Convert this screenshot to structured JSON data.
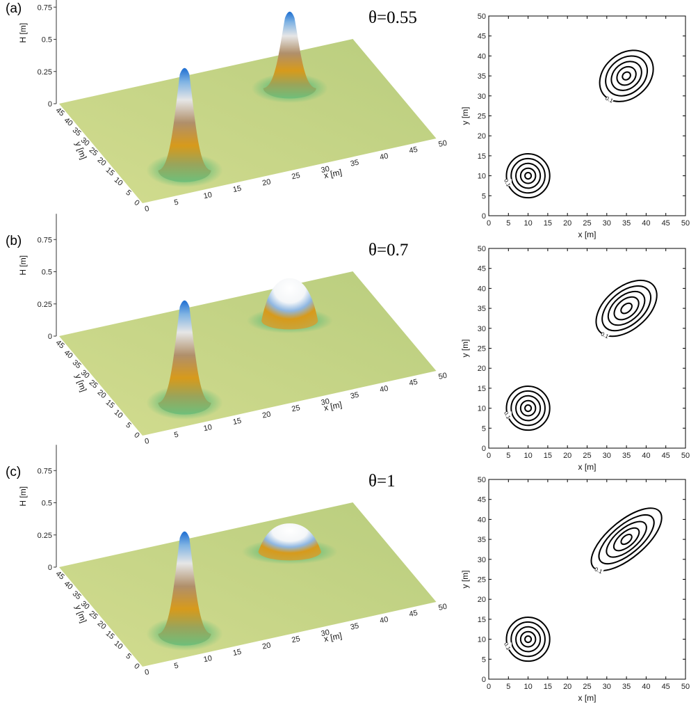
{
  "panels": [
    {
      "label": "(a)",
      "theta_label": "θ=0.55"
    },
    {
      "label": "(b)",
      "theta_label": "θ=0.7"
    },
    {
      "label": "(c)",
      "theta_label": "θ=1"
    }
  ],
  "colors": {
    "plane": "#c3d383",
    "peak_blue": "#1d6ed2",
    "band_orange": "#d79a1b",
    "band_green": "#6fbf7a",
    "contour": "#000000"
  },
  "chart_data": [
    {
      "type": "surface3d",
      "panel": "(a)",
      "zlabel": "H [m]",
      "xlabel": "x [m]",
      "ylabel": "y [m]",
      "z_ticks": [
        "0",
        "0.25",
        "0.5",
        "0.75"
      ],
      "x_ticks": [
        "0",
        "5",
        "10",
        "15",
        "20",
        "25",
        "30",
        "35",
        "40",
        "45",
        "50"
      ],
      "y_ticks": [
        "0",
        "5",
        "10",
        "15",
        "20",
        "25",
        "30",
        "35",
        "40",
        "45"
      ],
      "xlim": [
        0,
        50
      ],
      "ylim": [
        0,
        50
      ],
      "zlim": [
        0,
        1
      ],
      "humps": [
        {
          "cx": 10,
          "cy": 10,
          "height": 0.8,
          "rx": 4,
          "ry": 4
        },
        {
          "cx": 35,
          "cy": 35,
          "height": 0.6,
          "rx": 4,
          "ry": 3.5
        }
      ]
    },
    {
      "type": "contour",
      "panel": "(a)",
      "xlabel": "x [m]",
      "ylabel": "y [m]",
      "xlim": [
        0,
        50
      ],
      "ylim": [
        0,
        50
      ],
      "x_ticks": [
        0,
        5,
        10,
        15,
        20,
        25,
        30,
        35,
        40,
        45,
        50
      ],
      "y_ticks": [
        0,
        5,
        10,
        15,
        20,
        25,
        30,
        35,
        40,
        45,
        50
      ],
      "contour_label": "0.1",
      "ellipses": [
        {
          "cx": 10,
          "cy": 10,
          "radii": [
            [
              5.5,
              5.5
            ],
            [
              4.3,
              4.3
            ],
            [
              3.1,
              3.1
            ],
            [
              1.9,
              1.9
            ],
            [
              0.8,
              0.8
            ]
          ],
          "angle": 0
        },
        {
          "cx": 35,
          "cy": 35,
          "radii": [
            [
              7.5,
              5.6
            ],
            [
              5.8,
              4.4
            ],
            [
              4.2,
              3.2
            ],
            [
              2.6,
              2.1
            ],
            [
              1.1,
              0.9
            ]
          ],
          "angle": 40
        }
      ]
    },
    {
      "type": "surface3d",
      "panel": "(b)",
      "zlabel": "H [m]",
      "xlabel": "x [m]",
      "ylabel": "y [m]",
      "z_ticks": [
        "0",
        "0.25",
        "0.5",
        "0.75"
      ],
      "x_ticks": [
        "0",
        "5",
        "10",
        "15",
        "20",
        "25",
        "30",
        "35",
        "40",
        "45",
        "50"
      ],
      "y_ticks": [
        "0",
        "5",
        "10",
        "15",
        "20",
        "25",
        "30",
        "35",
        "40",
        "45"
      ],
      "xlim": [
        0,
        50
      ],
      "ylim": [
        0,
        50
      ],
      "zlim": [
        0,
        1
      ],
      "humps": [
        {
          "cx": 10,
          "cy": 10,
          "height": 0.8,
          "rx": 4,
          "ry": 4
        },
        {
          "cx": 35,
          "cy": 35,
          "height": 0.33,
          "rx": 4.5,
          "ry": 3
        }
      ]
    },
    {
      "type": "contour",
      "panel": "(b)",
      "xlabel": "x [m]",
      "ylabel": "y [m]",
      "xlim": [
        0,
        50
      ],
      "ylim": [
        0,
        50
      ],
      "x_ticks": [
        0,
        5,
        10,
        15,
        20,
        25,
        30,
        35,
        40,
        45,
        50
      ],
      "y_ticks": [
        0,
        5,
        10,
        15,
        20,
        25,
        30,
        35,
        40,
        45,
        50
      ],
      "contour_label": "0.1",
      "ellipses": [
        {
          "cx": 10,
          "cy": 10,
          "radii": [
            [
              5.5,
              5.5
            ],
            [
              4.3,
              4.3
            ],
            [
              3.1,
              3.1
            ],
            [
              1.9,
              1.9
            ],
            [
              0.8,
              0.8
            ]
          ],
          "angle": 0
        },
        {
          "cx": 35,
          "cy": 35,
          "radii": [
            [
              9.0,
              5.3
            ],
            [
              7.2,
              4.2
            ],
            [
              5.4,
              3.2
            ],
            [
              3.6,
              2.2
            ],
            [
              1.6,
              1.0
            ]
          ],
          "angle": 40
        }
      ]
    },
    {
      "type": "surface3d",
      "panel": "(c)",
      "zlabel": "H [m]",
      "xlabel": "x [m]",
      "ylabel": "y [m]",
      "z_ticks": [
        "0",
        "0.25",
        "0.5",
        "0.75"
      ],
      "x_ticks": [
        "0",
        "5",
        "10",
        "15",
        "20",
        "25",
        "30",
        "35",
        "40",
        "45",
        "50"
      ],
      "y_ticks": [
        "0",
        "5",
        "10",
        "15",
        "20",
        "25",
        "30",
        "35",
        "40",
        "45"
      ],
      "xlim": [
        0,
        50
      ],
      "ylim": [
        0,
        50
      ],
      "zlim": [
        0,
        1
      ],
      "humps": [
        {
          "cx": 10,
          "cy": 10,
          "height": 0.8,
          "rx": 4,
          "ry": 4
        },
        {
          "cx": 35,
          "cy": 35,
          "height": 0.22,
          "rx": 5,
          "ry": 3
        }
      ]
    },
    {
      "type": "contour",
      "panel": "(c)",
      "xlabel": "x [m]",
      "ylabel": "y [m]",
      "xlim": [
        0,
        50
      ],
      "ylim": [
        0,
        50
      ],
      "x_ticks": [
        0,
        5,
        10,
        15,
        20,
        25,
        30,
        35,
        40,
        45,
        50
      ],
      "y_ticks": [
        0,
        5,
        10,
        15,
        20,
        25,
        30,
        35,
        40,
        45,
        50
      ],
      "contour_label": "0.1",
      "ellipses": [
        {
          "cx": 10,
          "cy": 10,
          "radii": [
            [
              5.5,
              5.5
            ],
            [
              4.3,
              4.3
            ],
            [
              3.1,
              3.1
            ],
            [
              1.9,
              1.9
            ],
            [
              0.8,
              0.8
            ]
          ],
          "angle": 0
        },
        {
          "cx": 35,
          "cy": 35,
          "radii": [
            [
              11.0,
              4.6
            ],
            [
              8.6,
              3.6
            ],
            [
              6.2,
              2.7
            ],
            [
              3.9,
              1.8
            ],
            [
              1.6,
              0.9
            ]
          ],
          "angle": 40
        }
      ]
    }
  ]
}
